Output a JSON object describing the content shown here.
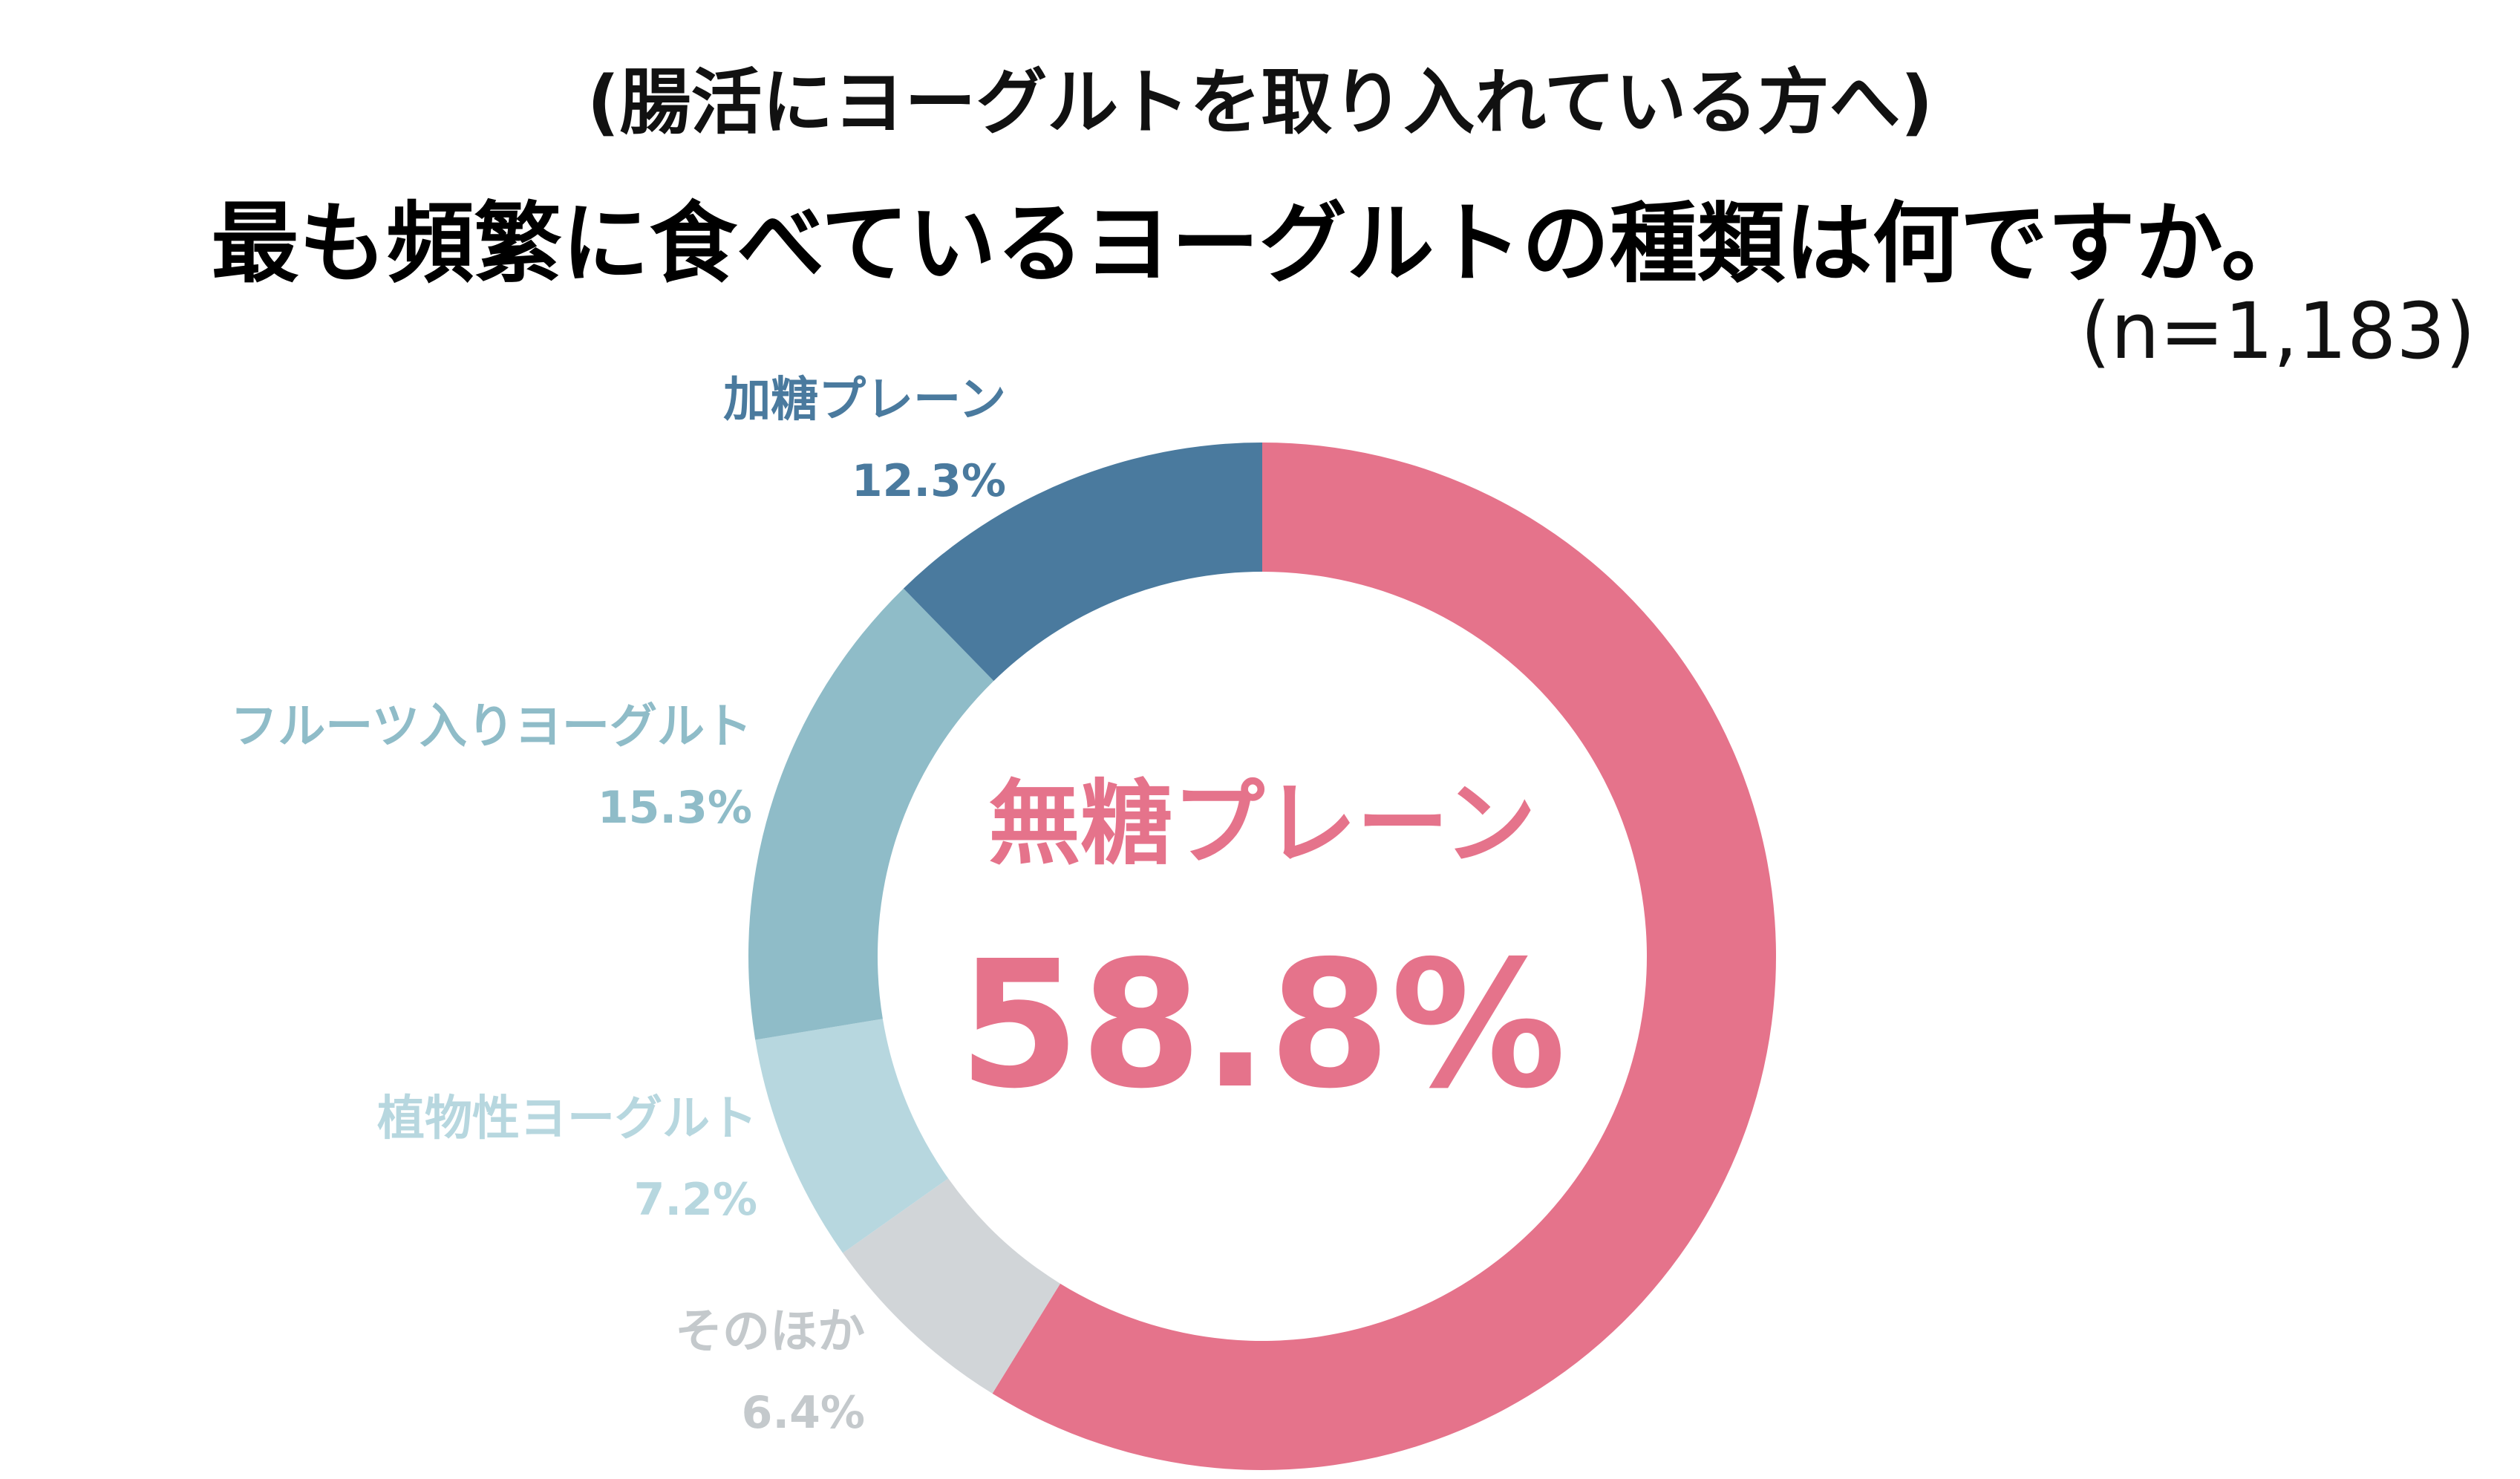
{
  "subtitle": "(腸活にヨーグルトを取り入れている方へ)",
  "title": "最も頻繁に食べているヨーグルトの種類は何ですか。",
  "sample_size": "(n=1,183)",
  "chart_data": {
    "type": "pie",
    "donut": true,
    "categories": [
      "無糖プレーン",
      "加糖プレーン",
      "フルーツ入りヨーグルト",
      "植物性ヨーグルト",
      "そのほか"
    ],
    "values": [
      58.8,
      12.3,
      15.3,
      7.2,
      6.4
    ],
    "value_labels": [
      "58.8%",
      "12.3%",
      "15.3%",
      "7.2%",
      "6.4%"
    ],
    "colors": [
      "#E5738B",
      "#4A7A9E",
      "#8FBCC8",
      "#B7D7DF",
      "#D1D5D8"
    ],
    "label_colors": [
      "#E5738B",
      "#4A7A9E",
      "#8FBCC8",
      "#B7D7DF",
      "#C4C9CC"
    ],
    "highlight_index": 0,
    "direction": "clockwise",
    "start": "top"
  }
}
